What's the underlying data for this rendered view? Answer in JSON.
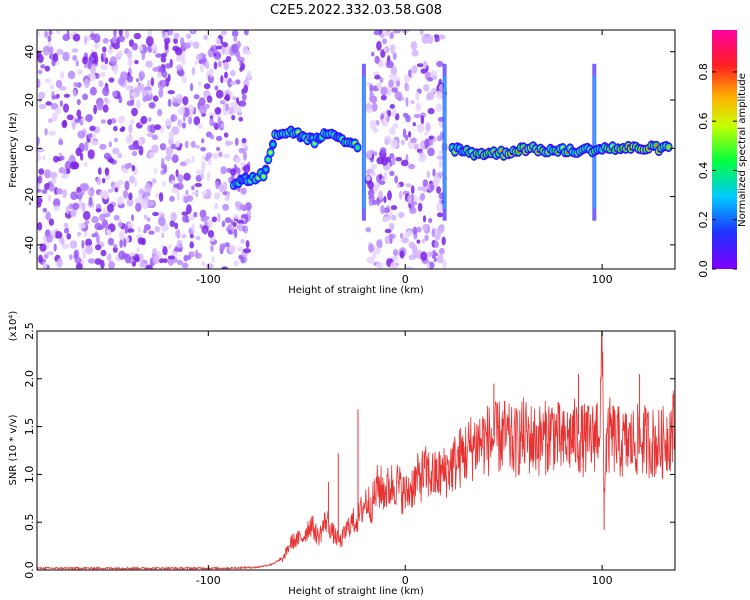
{
  "title": "C2E5.2022.332.03.58.G08",
  "colors": {
    "snr_line": "#e83232",
    "noise_purple": "#7b1fe0",
    "axis": "#000000"
  },
  "chart_data": [
    {
      "type": "heatmap",
      "name": "spectrogram",
      "xlabel": "Height of straight line (km)",
      "ylabel": "Frequency (Hz)",
      "xlim": [
        -187,
        137
      ],
      "ylim": [
        -50,
        49
      ],
      "xticks": [
        -100,
        0,
        100
      ],
      "xtick_labels": [
        "-100",
        "0",
        "100"
      ],
      "yticks": [
        -40,
        -20,
        0,
        20,
        40
      ],
      "ytick_labels": [
        "-40",
        "-20",
        "0",
        "20",
        "40"
      ],
      "colorbar": {
        "label": "Normalized spectral amplitude",
        "range": [
          0,
          0.97
        ],
        "ticks": [
          0.0,
          0.2,
          0.4,
          0.6,
          0.8
        ],
        "tick_labels": [
          "0.0",
          "0.2",
          "0.4",
          "0.6",
          "0.8"
        ],
        "colormap": "rainbow (purple-blue-cyan-green-yellow-red-magenta)"
      },
      "noise_regions_km": [
        [
          -187,
          -79
        ],
        [
          -19,
          20
        ]
      ],
      "signal_track": [
        {
          "x": -87,
          "y": -14,
          "amp": 0.45
        },
        {
          "x": -80,
          "y": -13,
          "amp": 0.5
        },
        {
          "x": -72,
          "y": -11,
          "amp": 0.45
        },
        {
          "x": -66,
          "y": 6,
          "amp": 0.5
        },
        {
          "x": -58,
          "y": 7,
          "amp": 0.45
        },
        {
          "x": -52,
          "y": 5,
          "amp": 0.5
        },
        {
          "x": -46,
          "y": 3,
          "amp": 0.4
        },
        {
          "x": -40,
          "y": 6,
          "amp": 0.45
        },
        {
          "x": -32,
          "y": 3,
          "amp": 0.55
        },
        {
          "x": -28,
          "y": 2,
          "amp": 0.6
        },
        {
          "x": -23,
          "y": 1,
          "amp": 0.45
        },
        {
          "x": 24,
          "y": 0,
          "amp": 0.5
        },
        {
          "x": 35,
          "y": -2,
          "amp": 0.7
        },
        {
          "x": 50,
          "y": -2,
          "amp": 0.75
        },
        {
          "x": 60,
          "y": 0,
          "amp": 0.85
        },
        {
          "x": 75,
          "y": -1,
          "amp": 0.7
        },
        {
          "x": 90,
          "y": -1,
          "amp": 0.75
        },
        {
          "x": 100,
          "y": 0,
          "amp": 0.6
        },
        {
          "x": 112,
          "y": 0,
          "amp": 0.9
        },
        {
          "x": 125,
          "y": 0,
          "amp": 0.9
        },
        {
          "x": 135,
          "y": 0,
          "amp": 0.85
        }
      ],
      "vertical_streaks_km": [
        -21,
        20,
        96
      ]
    },
    {
      "type": "line",
      "name": "snr",
      "xlabel": "Height of straight line (km)",
      "ylabel": "SNR (10 * v/v)",
      "y_multiplier_label": "(x10⁴)",
      "xlim": [
        -187,
        137
      ],
      "ylim": [
        0,
        2.5
      ],
      "xticks": [
        -100,
        0,
        100
      ],
      "xtick_labels": [
        "-100",
        "0",
        "100"
      ],
      "yticks": [
        0.0,
        0.5,
        1.0,
        1.5,
        2.0,
        2.5
      ],
      "ytick_labels": [
        "0.0",
        "0.5",
        "1.0",
        "1.5",
        "2.0",
        "2.5"
      ],
      "series": [
        {
          "x": [
            -187,
            -160,
            -120,
            -90,
            -75,
            -68,
            -62,
            -58,
            -52,
            -48,
            -44,
            -40,
            -37,
            -33,
            -28,
            -24,
            -20,
            -17,
            -14,
            -10,
            -5,
            0,
            5,
            10,
            15,
            20,
            25,
            30,
            35,
            40,
            45,
            50,
            55,
            60,
            65,
            70,
            75,
            80,
            85,
            90,
            95,
            99,
            100,
            101,
            102,
            104,
            110,
            120,
            130,
            137
          ],
          "y": [
            0.02,
            0.02,
            0.02,
            0.02,
            0.03,
            0.06,
            0.12,
            0.3,
            0.35,
            0.5,
            0.35,
            0.55,
            0.4,
            0.3,
            0.5,
            0.55,
            0.75,
            0.7,
            0.9,
            0.85,
            0.95,
            0.8,
            0.95,
            1.05,
            1.0,
            1.05,
            1.15,
            1.25,
            1.35,
            1.4,
            1.4,
            1.45,
            1.35,
            1.45,
            1.4,
            1.4,
            1.5,
            1.35,
            1.45,
            1.4,
            1.4,
            1.6,
            2.5,
            0.75,
            1.3,
            1.45,
            1.35,
            1.4,
            1.35,
            1.55
          ],
          "spikes": [
            {
              "x": -39,
              "y": 0.92
            },
            {
              "x": -24,
              "y": 1.68
            },
            {
              "x": -34,
              "y": 1.22
            },
            {
              "x": 45,
              "y": 1.95
            },
            {
              "x": 88,
              "y": 2.05
            },
            {
              "x": 100,
              "y": 2.5
            },
            {
              "x": 101,
              "y": 0.42
            },
            {
              "x": 119,
              "y": 2.05
            },
            {
              "x": 137,
              "y": 2.05
            }
          ]
        }
      ]
    }
  ]
}
